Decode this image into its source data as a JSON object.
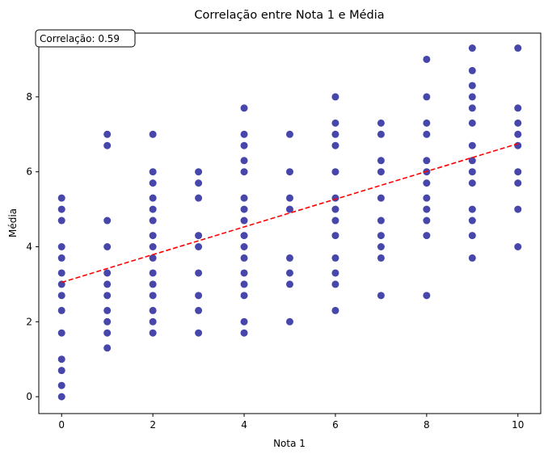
{
  "chart_data": {
    "type": "scatter",
    "title": "Correlação entre Nota 1 e Média",
    "xlabel": "Nota 1",
    "ylabel": "Média",
    "xlim": [
      -0.5,
      10.5
    ],
    "ylim": [
      -0.45,
      9.7
    ],
    "xticks": [
      "0",
      "2",
      "4",
      "6",
      "8",
      "10"
    ],
    "yticks": [
      "0",
      "2",
      "4",
      "6",
      "8"
    ],
    "grid": false,
    "annotation": "Correlação: 0.59",
    "colors": {
      "points": "#00008b",
      "trend": "#ff0000"
    },
    "series": [
      {
        "name": "",
        "style": "scatter",
        "points": [
          [
            0,
            0
          ],
          [
            0,
            0.3
          ],
          [
            0,
            0.7
          ],
          [
            0,
            1
          ],
          [
            0,
            1.7
          ],
          [
            0,
            2.3
          ],
          [
            0,
            2.7
          ],
          [
            0,
            3
          ],
          [
            0,
            3.3
          ],
          [
            0,
            3.7
          ],
          [
            0,
            4
          ],
          [
            0,
            4.7
          ],
          [
            0,
            5
          ],
          [
            0,
            5.3
          ],
          [
            1,
            1.3
          ],
          [
            1,
            1.7
          ],
          [
            1,
            2
          ],
          [
            1,
            2.3
          ],
          [
            1,
            2.7
          ],
          [
            1,
            3
          ],
          [
            1,
            3.3
          ],
          [
            1,
            4
          ],
          [
            1,
            4.7
          ],
          [
            1,
            6.7
          ],
          [
            1,
            7
          ],
          [
            2,
            1.7
          ],
          [
            2,
            2
          ],
          [
            2,
            2.3
          ],
          [
            2,
            2.7
          ],
          [
            2,
            3
          ],
          [
            2,
            3.3
          ],
          [
            2,
            3.7
          ],
          [
            2,
            4
          ],
          [
            2,
            4.3
          ],
          [
            2,
            4.7
          ],
          [
            2,
            5
          ],
          [
            2,
            5.3
          ],
          [
            2,
            5.7
          ],
          [
            2,
            6
          ],
          [
            2,
            7
          ],
          [
            3,
            1.7
          ],
          [
            3,
            2.3
          ],
          [
            3,
            2.7
          ],
          [
            3,
            3.3
          ],
          [
            3,
            4
          ],
          [
            3,
            4.3
          ],
          [
            3,
            5.3
          ],
          [
            3,
            5.7
          ],
          [
            3,
            6
          ],
          [
            4,
            1.7
          ],
          [
            4,
            2
          ],
          [
            4,
            2.7
          ],
          [
            4,
            3
          ],
          [
            4,
            3.3
          ],
          [
            4,
            3.7
          ],
          [
            4,
            4
          ],
          [
            4,
            4.3
          ],
          [
            4,
            4.7
          ],
          [
            4,
            5
          ],
          [
            4,
            5.3
          ],
          [
            4,
            6
          ],
          [
            4,
            6.3
          ],
          [
            4,
            6.7
          ],
          [
            4,
            7
          ],
          [
            4,
            7.7
          ],
          [
            5,
            2
          ],
          [
            5,
            3
          ],
          [
            5,
            3.3
          ],
          [
            5,
            3.7
          ],
          [
            5,
            5
          ],
          [
            5,
            5.3
          ],
          [
            5,
            6
          ],
          [
            5,
            7
          ],
          [
            6,
            2.3
          ],
          [
            6,
            3
          ],
          [
            6,
            3.3
          ],
          [
            6,
            3.7
          ],
          [
            6,
            4.3
          ],
          [
            6,
            4.7
          ],
          [
            6,
            5
          ],
          [
            6,
            5.3
          ],
          [
            6,
            6
          ],
          [
            6,
            6.7
          ],
          [
            6,
            7
          ],
          [
            6,
            7.3
          ],
          [
            6,
            8
          ],
          [
            7,
            2.7
          ],
          [
            7,
            3.7
          ],
          [
            7,
            4
          ],
          [
            7,
            4.3
          ],
          [
            7,
            4.7
          ],
          [
            7,
            5.3
          ],
          [
            7,
            6
          ],
          [
            7,
            6.3
          ],
          [
            7,
            7
          ],
          [
            7,
            7.3
          ],
          [
            8,
            2.7
          ],
          [
            8,
            4.3
          ],
          [
            8,
            4.7
          ],
          [
            8,
            5
          ],
          [
            8,
            5.3
          ],
          [
            8,
            5.7
          ],
          [
            8,
            6
          ],
          [
            8,
            6.3
          ],
          [
            8,
            7
          ],
          [
            8,
            7.3
          ],
          [
            8,
            8
          ],
          [
            8,
            9
          ],
          [
            9,
            3.7
          ],
          [
            9,
            4.3
          ],
          [
            9,
            4.7
          ],
          [
            9,
            5
          ],
          [
            9,
            5.7
          ],
          [
            9,
            6
          ],
          [
            9,
            6.3
          ],
          [
            9,
            6.7
          ],
          [
            9,
            7.3
          ],
          [
            9,
            7.7
          ],
          [
            9,
            8
          ],
          [
            9,
            8.3
          ],
          [
            9,
            8.7
          ],
          [
            9,
            9.3
          ],
          [
            10,
            4
          ],
          [
            10,
            5
          ],
          [
            10,
            5.7
          ],
          [
            10,
            6
          ],
          [
            10,
            6.7
          ],
          [
            10,
            7
          ],
          [
            10,
            7.3
          ],
          [
            10,
            7.7
          ],
          [
            10,
            9.3
          ]
        ]
      },
      {
        "name": "",
        "style": "dashed-line",
        "points": [
          [
            0,
            3.05
          ],
          [
            10,
            6.75
          ]
        ]
      }
    ]
  }
}
